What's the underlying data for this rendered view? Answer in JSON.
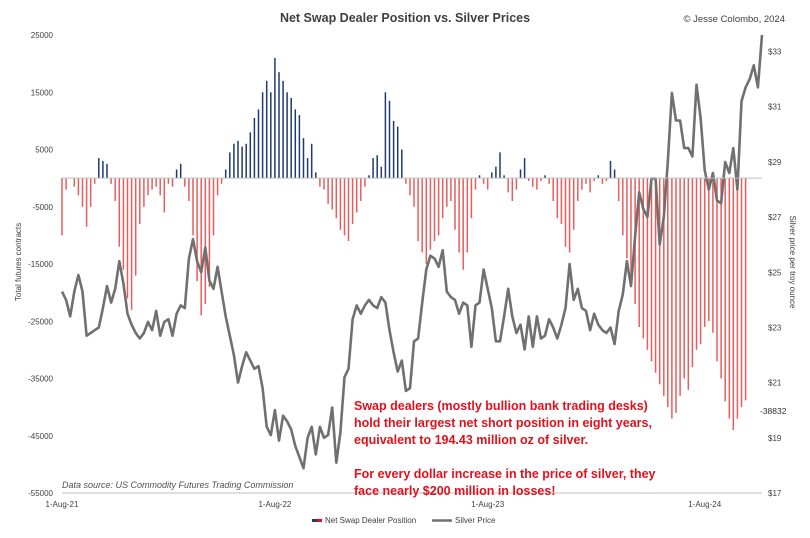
{
  "chart_data": {
    "type": "bar+line",
    "title": "Net Swap Dealer Position vs. Silver Prices",
    "copyright": "© Jesse Colombo, 2024",
    "y_left_label": "Total futures contracts",
    "y_right_label": "Silver price per troy ounce",
    "y_left_ticks": [
      "25000",
      "15000",
      "5000",
      "-5000",
      "-15000",
      "-25000",
      "-35000",
      "-45000",
      "-55000"
    ],
    "y_left_range": [
      -55000,
      25000
    ],
    "y_right_ticks": [
      "$33",
      "$31",
      "$29",
      "$27",
      "$25",
      "$23",
      "$21",
      "$19",
      "$17"
    ],
    "y_right_range": [
      17,
      33.6
    ],
    "x_ticks": [
      {
        "label": "1-Aug-21",
        "week": 0
      },
      {
        "label": "1-Aug-22",
        "week": 52
      },
      {
        "label": "1-Aug-23",
        "week": 104
      },
      {
        "label": "1-Aug-24",
        "week": 157
      }
    ],
    "week_count": 171,
    "legend": [
      {
        "name": "Net Swap Dealer Position"
      },
      {
        "name": "Silver Price"
      }
    ],
    "positive_colors": [
      "#1e3a6e"
    ],
    "negative_color": "#e85c5c",
    "line_color": "#707070",
    "last_value_label": "-38832",
    "data_source": "Data source: US Commodity Futures Trading Commission",
    "annotation_lines": [
      "Swap dealers (mostly bullion bank trading desks)",
      "hold their largest net short position in eight years,",
      "equivalent to 194.43 million oz of silver.",
      "",
      "For every dollar increase in the price of silver, they",
      "face nearly $200 million in losses!"
    ],
    "net_swap_position_anchors": [
      [
        0,
        -10000
      ],
      [
        1,
        -2000
      ],
      [
        3,
        -1500
      ],
      [
        4,
        -3000
      ],
      [
        5,
        -5000
      ],
      [
        6,
        -8500
      ],
      [
        7,
        -5000
      ],
      [
        8,
        -1000
      ],
      [
        9,
        3500
      ],
      [
        10,
        3000
      ],
      [
        11,
        2500
      ],
      [
        12,
        -1000
      ],
      [
        13,
        -4000
      ],
      [
        14,
        -12000
      ],
      [
        15,
        -16000
      ],
      [
        16,
        -21000
      ],
      [
        17,
        -23000
      ],
      [
        18,
        -17000
      ],
      [
        19,
        -8000
      ],
      [
        20,
        -5000
      ],
      [
        21,
        -3000
      ],
      [
        22,
        -2000
      ],
      [
        23,
        -1500
      ],
      [
        24,
        -3000
      ],
      [
        25,
        -6000
      ],
      [
        26,
        -1000
      ],
      [
        27,
        -1500
      ],
      [
        28,
        1500
      ],
      [
        29,
        2500
      ],
      [
        30,
        -1500
      ],
      [
        31,
        -4000
      ],
      [
        32,
        -10000
      ],
      [
        33,
        -18000
      ],
      [
        34,
        -24000
      ],
      [
        35,
        -22000
      ],
      [
        36,
        -19000
      ],
      [
        37,
        -10000
      ],
      [
        38,
        -3000
      ],
      [
        39,
        -1000
      ],
      [
        40,
        1500
      ],
      [
        41,
        4500
      ],
      [
        42,
        6000
      ],
      [
        43,
        6500
      ],
      [
        44,
        5500
      ],
      [
        45,
        6000
      ],
      [
        46,
        8000
      ],
      [
        47,
        10500
      ],
      [
        48,
        12000
      ],
      [
        49,
        15000
      ],
      [
        50,
        17000
      ],
      [
        51,
        15000
      ],
      [
        52,
        21000
      ],
      [
        53,
        18500
      ],
      [
        54,
        17000
      ],
      [
        55,
        15000
      ],
      [
        56,
        14000
      ],
      [
        57,
        12000
      ],
      [
        58,
        11000
      ],
      [
        59,
        7000
      ],
      [
        60,
        3500
      ],
      [
        61,
        6000
      ],
      [
        62,
        1000
      ],
      [
        63,
        -1500
      ],
      [
        64,
        -2000
      ],
      [
        65,
        -4500
      ],
      [
        66,
        -5500
      ],
      [
        67,
        -7000
      ],
      [
        68,
        -9000
      ],
      [
        69,
        -10000
      ],
      [
        70,
        -11000
      ],
      [
        71,
        -8000
      ],
      [
        72,
        -6000
      ],
      [
        73,
        -4000
      ],
      [
        74,
        -1500
      ],
      [
        75,
        500
      ],
      [
        76,
        3500
      ],
      [
        77,
        4000
      ],
      [
        78,
        2000
      ],
      [
        79,
        15000
      ],
      [
        80,
        13500
      ],
      [
        81,
        10000
      ],
      [
        82,
        9000
      ],
      [
        83,
        5000
      ],
      [
        84,
        -1000
      ],
      [
        85,
        -3000
      ],
      [
        86,
        -5000
      ],
      [
        87,
        -11000
      ],
      [
        88,
        -13000
      ],
      [
        89,
        -15000
      ],
      [
        90,
        -12500
      ],
      [
        91,
        -11000
      ],
      [
        92,
        -10000
      ],
      [
        93,
        -7000
      ],
      [
        94,
        -5000
      ],
      [
        95,
        -4000
      ],
      [
        96,
        -9000
      ],
      [
        97,
        -13000
      ],
      [
        98,
        -16000
      ],
      [
        99,
        -13000
      ],
      [
        100,
        -7000
      ],
      [
        101,
        -2000
      ],
      [
        102,
        500
      ],
      [
        103,
        -1000
      ],
      [
        104,
        -2000
      ],
      [
        105,
        1000
      ],
      [
        106,
        2000
      ],
      [
        107,
        4500
      ],
      [
        108,
        500
      ],
      [
        109,
        -2500
      ],
      [
        110,
        -4000
      ],
      [
        111,
        -2000
      ],
      [
        112,
        1500
      ],
      [
        113,
        3500
      ],
      [
        114,
        -500
      ],
      [
        115,
        -1500
      ],
      [
        116,
        -2000
      ],
      [
        117,
        -500
      ],
      [
        118,
        500
      ],
      [
        119,
        -1000
      ],
      [
        120,
        -4000
      ],
      [
        121,
        -7000
      ],
      [
        122,
        -8000
      ],
      [
        123,
        -12000
      ],
      [
        124,
        -13000
      ],
      [
        125,
        -9000
      ],
      [
        126,
        -4000
      ],
      [
        127,
        -2000
      ],
      [
        128,
        -1000
      ],
      [
        129,
        -2500
      ],
      [
        130,
        -500
      ],
      [
        131,
        500
      ],
      [
        132,
        -1000
      ],
      [
        133,
        -500
      ],
      [
        134,
        3000
      ],
      [
        135,
        1500
      ],
      [
        136,
        -4000
      ],
      [
        137,
        -10000
      ],
      [
        138,
        -14000
      ],
      [
        139,
        -18000
      ],
      [
        140,
        -22000
      ],
      [
        141,
        -26000
      ],
      [
        142,
        -28000
      ],
      [
        143,
        -30000
      ],
      [
        144,
        -32000
      ],
      [
        145,
        -34000
      ],
      [
        146,
        -36000
      ],
      [
        147,
        -38000
      ],
      [
        148,
        -40000
      ],
      [
        149,
        -42000
      ],
      [
        150,
        -41000
      ],
      [
        151,
        -38000
      ],
      [
        152,
        -35000
      ],
      [
        153,
        -37000
      ],
      [
        154,
        -33000
      ],
      [
        155,
        -30000
      ],
      [
        156,
        -29000
      ],
      [
        157,
        -26000
      ],
      [
        158,
        -25000
      ],
      [
        159,
        -27000
      ],
      [
        160,
        -32000
      ],
      [
        161,
        -35000
      ],
      [
        162,
        -39000
      ],
      [
        163,
        -42000
      ],
      [
        164,
        -44000
      ],
      [
        165,
        -42000
      ],
      [
        166,
        -40000
      ],
      [
        167,
        -38832
      ]
    ],
    "silver_price_points": [
      [
        0,
        24.3
      ],
      [
        1,
        24.0
      ],
      [
        2,
        23.4
      ],
      [
        3,
        24.3
      ],
      [
        4,
        24.9
      ],
      [
        5,
        24.3
      ],
      [
        6,
        22.7
      ],
      [
        7,
        22.8
      ],
      [
        8,
        22.9
      ],
      [
        9,
        23.0
      ],
      [
        10,
        23.7
      ],
      [
        11,
        24.5
      ],
      [
        12,
        23.9
      ],
      [
        13,
        24.4
      ],
      [
        14,
        25.4
      ],
      [
        15,
        24.6
      ],
      [
        16,
        23.5
      ],
      [
        17,
        23.1
      ],
      [
        18,
        22.8
      ],
      [
        19,
        22.6
      ],
      [
        20,
        22.8
      ],
      [
        21,
        23.2
      ],
      [
        22,
        22.9
      ],
      [
        23,
        23.6
      ],
      [
        24,
        22.7
      ],
      [
        25,
        23.2
      ],
      [
        26,
        23.3
      ],
      [
        27,
        22.7
      ],
      [
        28,
        23.5
      ],
      [
        29,
        23.8
      ],
      [
        30,
        23.7
      ],
      [
        31,
        25.5
      ],
      [
        32,
        26.2
      ],
      [
        33,
        25.4
      ],
      [
        34,
        25.0
      ],
      [
        35,
        25.9
      ],
      [
        36,
        24.7
      ],
      [
        37,
        24.4
      ],
      [
        38,
        25.2
      ],
      [
        39,
        24.3
      ],
      [
        40,
        23.4
      ],
      [
        41,
        22.7
      ],
      [
        42,
        22.0
      ],
      [
        43,
        21.0
      ],
      [
        44,
        21.6
      ],
      [
        45,
        22.1
      ],
      [
        46,
        21.8
      ],
      [
        47,
        21.5
      ],
      [
        48,
        21.6
      ],
      [
        49,
        20.8
      ],
      [
        50,
        19.4
      ],
      [
        51,
        19.1
      ],
      [
        52,
        20.0
      ],
      [
        53,
        18.9
      ],
      [
        54,
        19.8
      ],
      [
        55,
        19.6
      ],
      [
        56,
        19.3
      ],
      [
        57,
        18.7
      ],
      [
        58,
        18.3
      ],
      [
        59,
        17.9
      ],
      [
        60,
        19.0
      ],
      [
        61,
        19.4
      ],
      [
        62,
        18.4
      ],
      [
        63,
        19.4
      ],
      [
        64,
        19.0
      ],
      [
        65,
        19.1
      ],
      [
        66,
        20.1
      ],
      [
        67,
        18.1
      ],
      [
        68,
        19.2
      ],
      [
        69,
        21.2
      ],
      [
        70,
        21.5
      ],
      [
        71,
        23.3
      ],
      [
        72,
        23.8
      ],
      [
        73,
        23.5
      ],
      [
        74,
        23.8
      ],
      [
        75,
        24.0
      ],
      [
        76,
        23.8
      ],
      [
        77,
        23.7
      ],
      [
        78,
        24.1
      ],
      [
        79,
        23.9
      ],
      [
        80,
        22.9
      ],
      [
        81,
        22.1
      ],
      [
        82,
        21.4
      ],
      [
        83,
        21.8
      ],
      [
        84,
        20.7
      ],
      [
        85,
        20.8
      ],
      [
        86,
        22.5
      ],
      [
        87,
        22.6
      ],
      [
        88,
        23.9
      ],
      [
        89,
        25.1
      ],
      [
        90,
        25.6
      ],
      [
        91,
        25.5
      ],
      [
        92,
        25.2
      ],
      [
        93,
        25.8
      ],
      [
        94,
        24.3
      ],
      [
        95,
        24.1
      ],
      [
        96,
        24.0
      ],
      [
        97,
        23.5
      ],
      [
        98,
        23.9
      ],
      [
        99,
        23.8
      ],
      [
        100,
        22.3
      ],
      [
        101,
        23.8
      ],
      [
        102,
        23.9
      ],
      [
        103,
        25.1
      ],
      [
        104,
        24.4
      ],
      [
        105,
        23.7
      ],
      [
        106,
        22.5
      ],
      [
        107,
        22.5
      ],
      [
        108,
        23.4
      ],
      [
        109,
        24.4
      ],
      [
        110,
        23.4
      ],
      [
        111,
        22.8
      ],
      [
        112,
        23.1
      ],
      [
        113,
        22.2
      ],
      [
        114,
        23.4
      ],
      [
        115,
        22.3
      ],
      [
        116,
        23.4
      ],
      [
        117,
        22.6
      ],
      [
        118,
        22.7
      ],
      [
        119,
        23.3
      ],
      [
        120,
        23.0
      ],
      [
        121,
        22.6
      ],
      [
        122,
        23.1
      ],
      [
        123,
        23.7
      ],
      [
        124,
        25.3
      ],
      [
        125,
        24.0
      ],
      [
        126,
        24.4
      ],
      [
        127,
        23.7
      ],
      [
        128,
        23.6
      ],
      [
        129,
        22.9
      ],
      [
        130,
        23.5
      ],
      [
        131,
        23.1
      ],
      [
        132,
        22.9
      ],
      [
        133,
        22.8
      ],
      [
        134,
        23.0
      ],
      [
        135,
        22.4
      ],
      [
        136,
        23.6
      ],
      [
        137,
        24.2
      ],
      [
        138,
        25.4
      ],
      [
        139,
        24.5
      ],
      [
        140,
        26.3
      ],
      [
        141,
        27.9
      ],
      [
        142,
        27.3
      ],
      [
        143,
        27.0
      ],
      [
        144,
        28.4
      ],
      [
        145,
        28.4
      ],
      [
        146,
        26.0
      ],
      [
        147,
        27.0
      ],
      [
        148,
        29.0
      ],
      [
        149,
        31.5
      ],
      [
        150,
        30.5
      ],
      [
        151,
        30.5
      ],
      [
        152,
        29.5
      ],
      [
        153,
        29.5
      ],
      [
        154,
        29.2
      ],
      [
        155,
        31.8
      ],
      [
        156,
        30.6
      ],
      [
        157,
        28.7
      ],
      [
        158,
        28.0
      ],
      [
        159,
        28.6
      ],
      [
        160,
        27.6
      ],
      [
        161,
        27.5
      ],
      [
        162,
        29.0
      ],
      [
        163,
        28.6
      ],
      [
        164,
        29.5
      ],
      [
        165,
        28.0
      ],
      [
        166,
        31.2
      ],
      [
        167,
        31.7
      ],
      [
        168,
        32.0
      ],
      [
        169,
        32.5
      ],
      [
        170,
        31.7
      ],
      [
        171,
        33.6
      ]
    ]
  }
}
